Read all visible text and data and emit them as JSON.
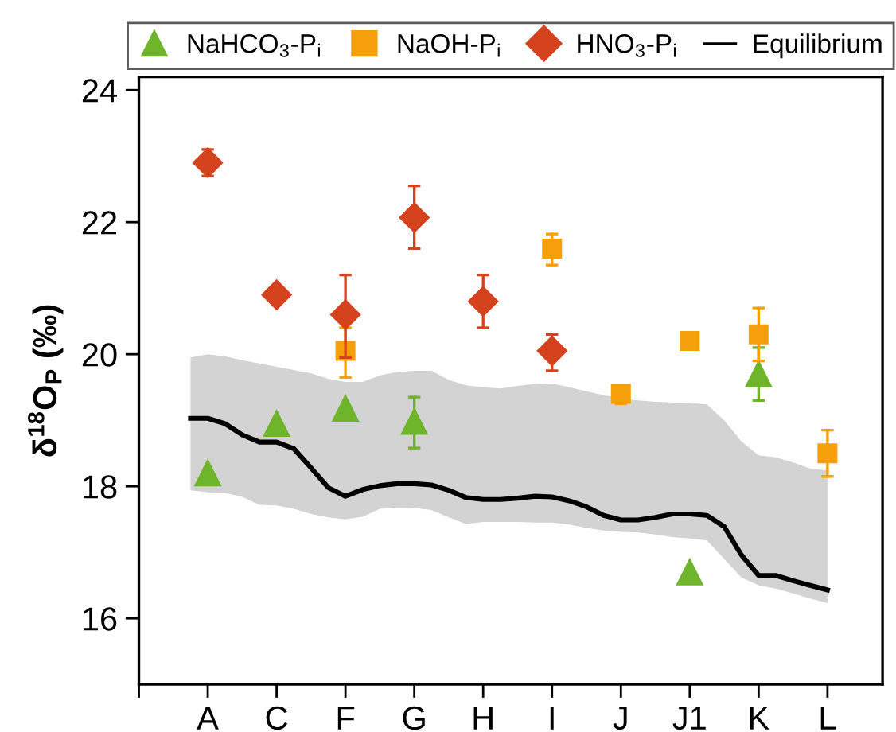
{
  "chart_data": {
    "type": "scatter",
    "ylabel": "δ$^{18}$O$_{P}$ (‰)",
    "categories": [
      null,
      "A",
      null,
      null,
      null,
      "C",
      null,
      null,
      null,
      "F",
      null,
      null,
      null,
      "G",
      null,
      null,
      null,
      "H",
      null,
      null,
      null,
      "I",
      null,
      null,
      null,
      "J",
      null,
      null,
      null,
      "J1",
      null,
      null,
      null,
      "K",
      null,
      null,
      null,
      "L"
    ],
    "ylim": [
      15,
      24.2
    ],
    "yticks": [
      16,
      18,
      20,
      22,
      24
    ],
    "grid": false,
    "legend": "top",
    "series": [
      {
        "name": "Equilibrium",
        "type": "line",
        "color": "#000000",
        "line_style": "solid",
        "values": [
          19.03,
          19.03,
          18.95,
          18.78,
          18.67,
          18.67,
          18.57,
          18.28,
          17.98,
          17.85,
          17.95,
          18.01,
          18.04,
          18.04,
          18.02,
          17.94,
          17.83,
          17.8,
          17.8,
          17.82,
          17.85,
          17.84,
          17.78,
          17.69,
          17.56,
          17.49,
          17.49,
          17.53,
          17.58,
          17.58,
          17.56,
          17.39,
          16.96,
          16.65,
          16.65,
          16.57,
          16.5,
          16.43
        ],
        "upper": [
          19.95,
          20.0,
          19.97,
          19.91,
          19.86,
          19.81,
          19.76,
          19.71,
          19.63,
          19.58,
          19.58,
          19.68,
          19.73,
          19.75,
          19.75,
          19.61,
          19.53,
          19.5,
          19.48,
          19.52,
          19.55,
          19.56,
          19.5,
          19.44,
          19.38,
          19.33,
          19.3,
          19.28,
          19.27,
          19.26,
          19.24,
          19.0,
          18.68,
          18.47,
          18.44,
          18.36,
          18.27,
          18.24
        ],
        "lower": [
          17.94,
          17.91,
          17.9,
          17.84,
          17.72,
          17.71,
          17.66,
          17.58,
          17.53,
          17.5,
          17.54,
          17.66,
          17.68,
          17.67,
          17.64,
          17.53,
          17.43,
          17.46,
          17.46,
          17.46,
          17.45,
          17.45,
          17.42,
          17.37,
          17.33,
          17.31,
          17.3,
          17.27,
          17.23,
          17.21,
          17.18,
          16.9,
          16.62,
          16.5,
          16.45,
          16.38,
          16.3,
          16.23
        ]
      },
      {
        "name": "NaHCO$_{3}$-P$_{i}$",
        "marker": "triangle",
        "color": "#6fb52c",
        "values": [
          null,
          18.2,
          null,
          null,
          null,
          18.95,
          null,
          null,
          null,
          19.18,
          null,
          null,
          null,
          18.98,
          null,
          null,
          null,
          null,
          null,
          null,
          null,
          null,
          null,
          null,
          null,
          null,
          null,
          null,
          null,
          16.7,
          null,
          null,
          null,
          19.7,
          null,
          null,
          null,
          null
        ],
        "errors": [
          null,
          null,
          null,
          null,
          null,
          null,
          null,
          null,
          null,
          null,
          null,
          null,
          null,
          [
            18.58,
            19.35
          ],
          null,
          null,
          null,
          null,
          null,
          null,
          null,
          null,
          null,
          null,
          null,
          null,
          null,
          null,
          null,
          null,
          null,
          null,
          null,
          [
            19.3,
            20.1
          ],
          null,
          null,
          null,
          null
        ]
      },
      {
        "name": "NaOH-P$_{i}$",
        "marker": "square",
        "color": "#f5a00a",
        "values": [
          null,
          null,
          null,
          null,
          null,
          null,
          null,
          null,
          null,
          20.05,
          null,
          null,
          null,
          null,
          null,
          null,
          null,
          null,
          null,
          null,
          null,
          21.6,
          null,
          null,
          null,
          19.4,
          null,
          null,
          null,
          20.2,
          null,
          null,
          null,
          20.3,
          null,
          null,
          null,
          18.5
        ],
        "errors": [
          null,
          null,
          null,
          null,
          null,
          null,
          null,
          null,
          null,
          [
            19.65,
            20.4
          ],
          null,
          null,
          null,
          null,
          null,
          null,
          null,
          null,
          null,
          null,
          null,
          [
            21.35,
            21.82
          ],
          null,
          null,
          null,
          [
            19.25,
            19.4
          ],
          null,
          null,
          null,
          null,
          null,
          null,
          null,
          [
            19.9,
            20.7
          ],
          null,
          null,
          null,
          [
            18.15,
            18.85
          ]
        ]
      },
      {
        "name": "HNO$_{3}$-P$_{i}$",
        "marker": "diamond",
        "color": "#d4421e",
        "values": [
          null,
          22.9,
          null,
          null,
          null,
          20.9,
          null,
          null,
          null,
          20.6,
          null,
          null,
          null,
          22.07,
          null,
          null,
          null,
          20.8,
          null,
          null,
          null,
          20.05,
          null,
          null,
          null,
          null,
          null,
          null,
          null,
          null,
          null,
          null,
          null,
          null,
          null,
          null,
          null,
          null
        ],
        "errors": [
          null,
          [
            22.7,
            23.1
          ],
          null,
          null,
          null,
          null,
          null,
          null,
          null,
          [
            19.95,
            21.2
          ],
          null,
          null,
          null,
          [
            21.6,
            22.55
          ],
          null,
          null,
          null,
          [
            20.4,
            21.2
          ],
          null,
          null,
          null,
          [
            19.75,
            20.3
          ],
          null,
          null,
          null,
          null,
          null,
          null,
          null,
          null,
          null,
          null,
          null,
          null,
          null,
          null,
          null,
          null
        ]
      }
    ]
  }
}
